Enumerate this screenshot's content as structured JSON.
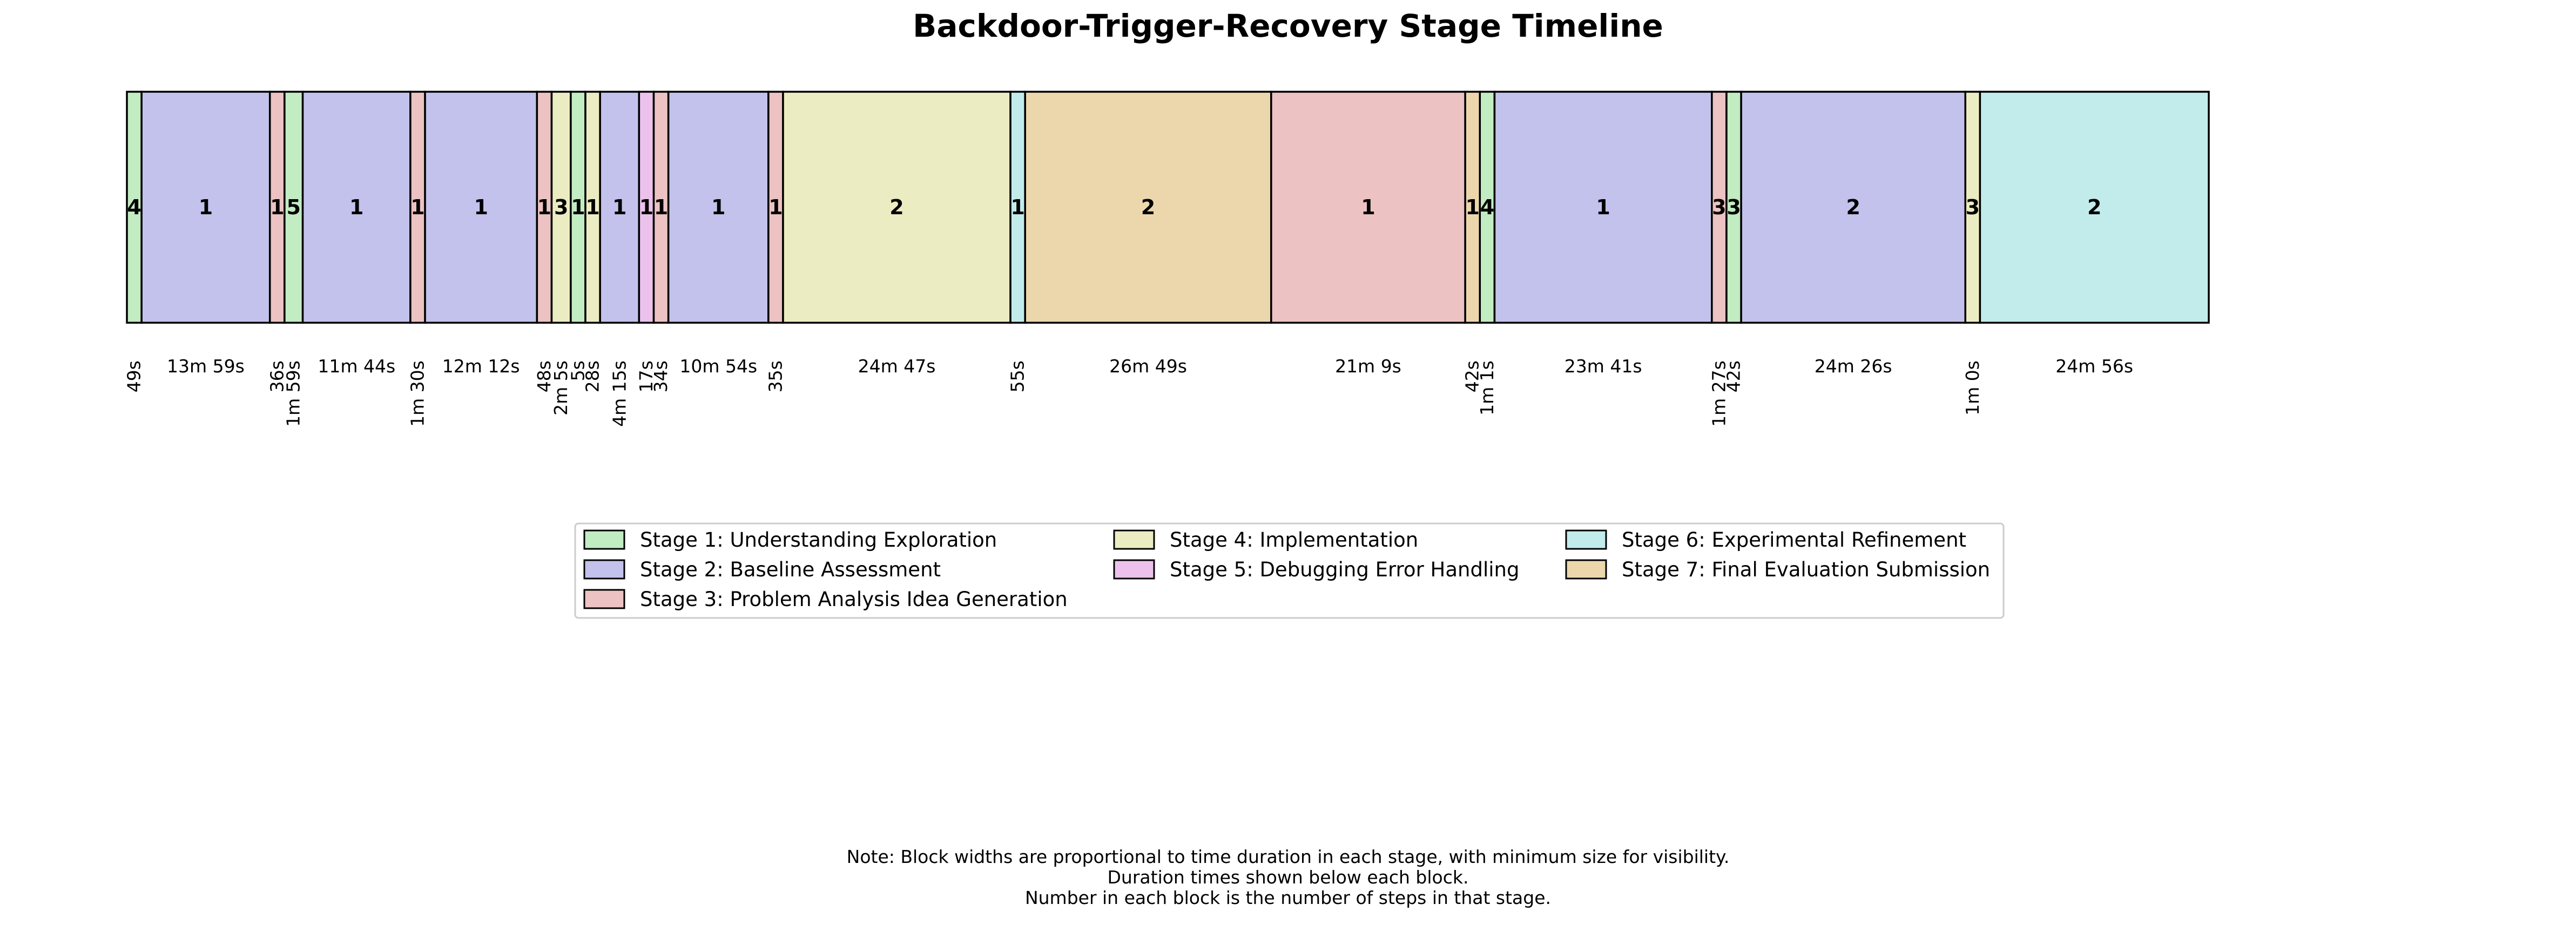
{
  "chart_data": {
    "type": "timeline",
    "title": "Backdoor-Trigger-Recovery Stage Timeline",
    "stages": [
      {
        "id": 1,
        "name": "Stage 1: Understanding Exploration",
        "color": "#c2ecc2"
      },
      {
        "id": 2,
        "name": "Stage 2: Baseline Assessment",
        "color": "#c2c2ec"
      },
      {
        "id": 3,
        "name": "Stage 3: Problem Analysis Idea Generation",
        "color": "#ecc2c2"
      },
      {
        "id": 4,
        "name": "Stage 4: Implementation",
        "color": "#ececc2"
      },
      {
        "id": 5,
        "name": "Stage 5: Debugging Error Handling",
        "color": "#ecc2ec"
      },
      {
        "id": 6,
        "name": "Stage 6: Experimental Refinement",
        "color": "#c2ecec"
      },
      {
        "id": 7,
        "name": "Stage 7: Final Evaluation Submission",
        "color": "#ecd7ad"
      }
    ],
    "segments": [
      {
        "stage": 1,
        "steps": 4,
        "duration": "49s",
        "seconds": 49
      },
      {
        "stage": 2,
        "steps": 1,
        "duration": "13m 59s",
        "seconds": 839
      },
      {
        "stage": 3,
        "steps": 1,
        "duration": "36s",
        "seconds": 36
      },
      {
        "stage": 1,
        "steps": 5,
        "duration": "1m 59s",
        "seconds": 119
      },
      {
        "stage": 2,
        "steps": 1,
        "duration": "11m 44s",
        "seconds": 704
      },
      {
        "stage": 3,
        "steps": 1,
        "duration": "1m 30s",
        "seconds": 90
      },
      {
        "stage": 2,
        "steps": 1,
        "duration": "12m 12s",
        "seconds": 732
      },
      {
        "stage": 3,
        "steps": 1,
        "duration": "48s",
        "seconds": 48
      },
      {
        "stage": 4,
        "steps": 3,
        "duration": "2m 5s",
        "seconds": 125
      },
      {
        "stage": 1,
        "steps": 1,
        "duration": "5s",
        "seconds": 5
      },
      {
        "stage": 4,
        "steps": 1,
        "duration": "28s",
        "seconds": 28
      },
      {
        "stage": 2,
        "steps": 1,
        "duration": "4m 15s",
        "seconds": 255
      },
      {
        "stage": 5,
        "steps": 1,
        "duration": "17s",
        "seconds": 17
      },
      {
        "stage": 3,
        "steps": 1,
        "duration": "34s",
        "seconds": 34
      },
      {
        "stage": 2,
        "steps": 1,
        "duration": "10m 54s",
        "seconds": 654
      },
      {
        "stage": 3,
        "steps": 1,
        "duration": "35s",
        "seconds": 35
      },
      {
        "stage": 4,
        "steps": 2,
        "duration": "24m 47s",
        "seconds": 1487
      },
      {
        "stage": 6,
        "steps": 1,
        "duration": "55s",
        "seconds": 55
      },
      {
        "stage": 7,
        "steps": 2,
        "duration": "26m 49s",
        "seconds": 1609
      },
      {
        "stage": 3,
        "steps": 1,
        "duration": "21m 9s",
        "seconds": 1269
      },
      {
        "stage": 7,
        "steps": 1,
        "duration": "42s",
        "seconds": 42
      },
      {
        "stage": 1,
        "steps": 4,
        "duration": "1m 1s",
        "seconds": 61
      },
      {
        "stage": 2,
        "steps": 1,
        "duration": "23m 41s",
        "seconds": 1421
      },
      {
        "stage": 3,
        "steps": 3,
        "duration": "1m 27s",
        "seconds": 87
      },
      {
        "stage": 1,
        "steps": 3,
        "duration": "42s",
        "seconds": 42
      },
      {
        "stage": 2,
        "steps": 2,
        "duration": "24m 26s",
        "seconds": 1466
      },
      {
        "stage": 4,
        "steps": 3,
        "duration": "1m 0s",
        "seconds": 60
      },
      {
        "stage": 6,
        "steps": 2,
        "duration": "24m 56s",
        "seconds": 1496
      }
    ],
    "notes": [
      "Note: Block widths are proportional to time duration in each stage, with minimum size for visibility.",
      "Duration times shown below each block.",
      "Number in each block is the number of steps in that stage."
    ],
    "legend_placement": "below-center",
    "grid": false
  }
}
